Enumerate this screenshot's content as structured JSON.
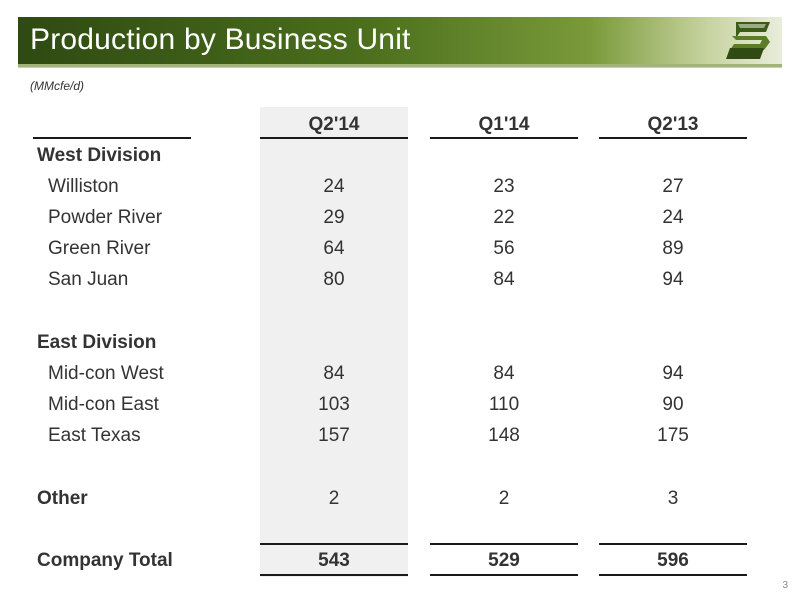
{
  "title": "Production by Business Unit",
  "units": "(MMcfe/d)",
  "columns": [
    "Q2'14",
    "Q1'14",
    "Q2'13"
  ],
  "sections": {
    "west": {
      "heading": "West Division",
      "rows": [
        {
          "label": "Williston",
          "values": [
            "24",
            "23",
            "27"
          ]
        },
        {
          "label": "Powder River",
          "values": [
            "29",
            "22",
            "24"
          ]
        },
        {
          "label": "Green River",
          "values": [
            "64",
            "56",
            "89"
          ]
        },
        {
          "label": "San Juan",
          "values": [
            "80",
            "84",
            "94"
          ]
        }
      ]
    },
    "east": {
      "heading": "East Division",
      "rows": [
        {
          "label": "Mid-con West",
          "values": [
            "84",
            "84",
            "94"
          ]
        },
        {
          "label": "Mid-con East",
          "values": [
            "103",
            "110",
            "90"
          ]
        },
        {
          "label": "East Texas",
          "values": [
            "157",
            "148",
            "175"
          ]
        }
      ]
    },
    "other": {
      "label": "Other",
      "values": [
        "2",
        "2",
        "3"
      ]
    },
    "total": {
      "label": "Company Total",
      "values": [
        "543",
        "529",
        "596"
      ]
    }
  },
  "page_number": "3",
  "colors": {
    "title_bar_dark": "#2f4a12",
    "title_bar_light": "#e9eddc",
    "highlight_column": "#f0f0f0",
    "text": "#333333"
  },
  "logo_icon": "company-logo-icon"
}
